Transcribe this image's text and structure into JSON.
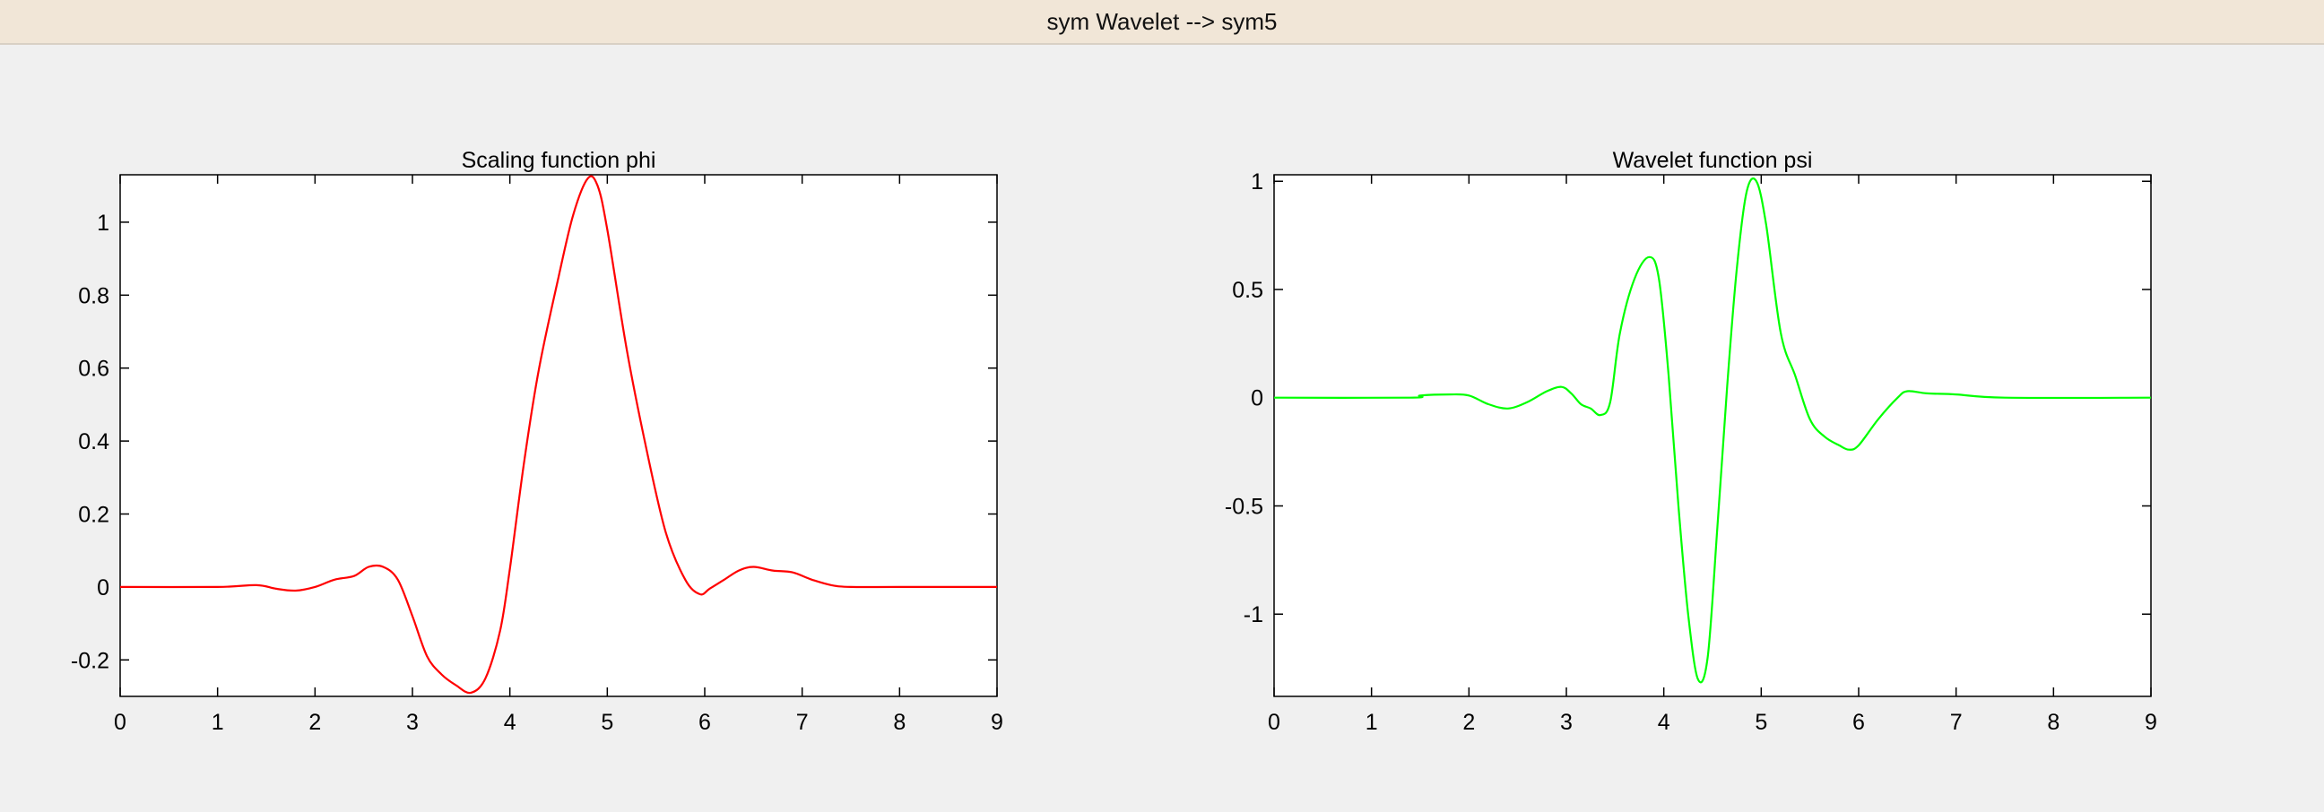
{
  "window": {
    "title": "sym Wavelet -->  sym5"
  },
  "colors": {
    "phi": "#ff0000",
    "psi": "#00ff00",
    "background": "#f0f0f0",
    "titlebar": "#f1e6d7"
  },
  "chart_data": [
    {
      "type": "line",
      "title": "Scaling function phi",
      "xlim": [
        0,
        9
      ],
      "ylim": [
        -0.3,
        1.13
      ],
      "xticks": [
        0,
        1,
        2,
        3,
        4,
        5,
        6,
        7,
        8,
        9
      ],
      "yticks": [
        -0.2,
        0,
        0.2,
        0.4,
        0.6,
        0.8,
        1
      ],
      "ytick_labels": [
        "-0.2",
        "0",
        "0.2",
        "0.4",
        "0.6",
        "0.8",
        "1"
      ],
      "grid": false,
      "series": [
        {
          "color": "#ff0000",
          "x": [
            0,
            1.0,
            1.4,
            1.6,
            1.8,
            2.0,
            2.2,
            2.4,
            2.55,
            2.7,
            2.85,
            3.0,
            3.15,
            3.3,
            3.45,
            3.6,
            3.75,
            3.9,
            4.0,
            4.15,
            4.3,
            4.5,
            4.65,
            4.8,
            4.9,
            5.0,
            5.2,
            5.4,
            5.6,
            5.8,
            5.95,
            6.05,
            6.2,
            6.35,
            6.5,
            6.7,
            6.9,
            7.1,
            7.3,
            7.5,
            8.0,
            9.0
          ],
          "y": [
            0,
            0,
            0.005,
            -0.005,
            -0.01,
            0,
            0.02,
            0.03,
            0.055,
            0.055,
            0.02,
            -0.08,
            -0.19,
            -0.24,
            -0.27,
            -0.29,
            -0.25,
            -0.12,
            0.05,
            0.35,
            0.6,
            0.85,
            1.02,
            1.12,
            1.1,
            0.98,
            0.65,
            0.38,
            0.15,
            0.02,
            -0.02,
            -0.005,
            0.02,
            0.045,
            0.055,
            0.045,
            0.04,
            0.02,
            0.005,
            0,
            0,
            0
          ]
        }
      ]
    },
    {
      "type": "line",
      "title": "Wavelet function psi",
      "xlim": [
        0,
        9
      ],
      "ylim": [
        -1.38,
        1.03
      ],
      "xticks": [
        0,
        1,
        2,
        3,
        4,
        5,
        6,
        7,
        8,
        9
      ],
      "yticks": [
        -1,
        -0.5,
        0,
        0.5,
        1
      ],
      "ytick_labels": [
        "-1",
        "-0.5",
        "0",
        "0.5",
        "1"
      ],
      "grid": false,
      "series": [
        {
          "color": "#00ff00",
          "x": [
            0,
            1.4,
            1.5,
            1.8,
            2.0,
            2.2,
            2.4,
            2.6,
            2.8,
            2.95,
            3.05,
            3.15,
            3.25,
            3.35,
            3.45,
            3.55,
            3.7,
            3.85,
            3.95,
            4.05,
            4.15,
            4.25,
            4.35,
            4.45,
            4.55,
            4.65,
            4.75,
            4.85,
            4.95,
            5.05,
            5.2,
            5.35,
            5.5,
            5.65,
            5.8,
            5.9,
            6.0,
            6.2,
            6.4,
            6.5,
            6.7,
            7.0,
            7.5,
            9.0
          ],
          "y": [
            0,
            0,
            0.01,
            0.015,
            0.01,
            -0.03,
            -0.05,
            -0.02,
            0.03,
            0.05,
            0.02,
            -0.03,
            -0.05,
            -0.08,
            -0.02,
            0.3,
            0.55,
            0.65,
            0.55,
            0.1,
            -0.5,
            -1.0,
            -1.3,
            -1.2,
            -0.6,
            0.05,
            0.6,
            0.95,
            1.0,
            0.8,
            0.3,
            0.1,
            -0.1,
            -0.18,
            -0.22,
            -0.24,
            -0.22,
            -0.1,
            0.0,
            0.03,
            0.02,
            0.015,
            0,
            0
          ]
        }
      ]
    }
  ]
}
